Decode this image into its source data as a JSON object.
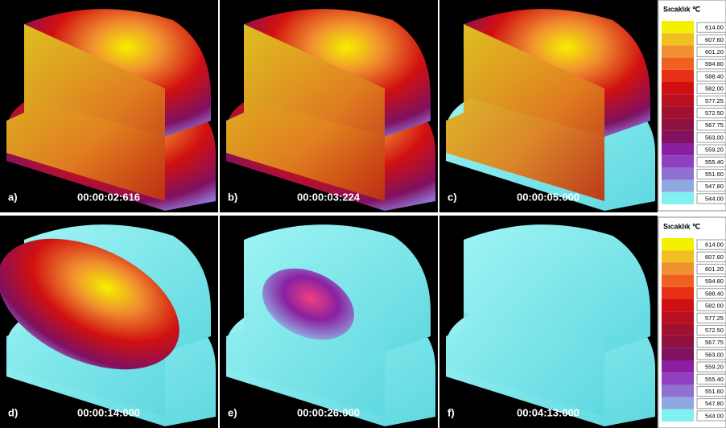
{
  "panels": [
    {
      "label": "a)",
      "time": "00:00:02:616"
    },
    {
      "label": "b)",
      "time": "00:00:03:224"
    },
    {
      "label": "c)",
      "time": "00:00:05:000"
    },
    {
      "label": "d)",
      "time": "00:00:14:000"
    },
    {
      "label": "e)",
      "time": "00:00:26:000"
    },
    {
      "label": "f)",
      "time": "00:04:13:000"
    }
  ],
  "legends": [
    {
      "title": "Sıcaklık ℃",
      "values": [
        "614.00",
        "607.60",
        "601.20",
        "594.80",
        "588.40",
        "582.00",
        "577.25",
        "572.50",
        "567.75",
        "563.00",
        "559.20",
        "555.40",
        "551.60",
        "547.80",
        "544.00"
      ],
      "colors": [
        "#f5f000",
        "#f0c020",
        "#f09030",
        "#f06020",
        "#e83018",
        "#d01010",
        "#b81020",
        "#a01030",
        "#901040",
        "#801060",
        "#8a20a0",
        "#9040c0",
        "#9070d0",
        "#90a8e0",
        "#80f0f0"
      ]
    },
    {
      "title": "Sıcaklık ℃",
      "values": [
        "614.00",
        "607.60",
        "601.20",
        "594.80",
        "588.40",
        "582.00",
        "577.25",
        "572.50",
        "567.75",
        "563.00",
        "559.20",
        "555.40",
        "551.60",
        "547.80",
        "544.00"
      ],
      "colors": [
        "#f5f000",
        "#f0c020",
        "#f09030",
        "#f06020",
        "#e83018",
        "#d01010",
        "#b81020",
        "#a01030",
        "#901040",
        "#801060",
        "#8a20a0",
        "#9040c0",
        "#9070d0",
        "#90a8e0",
        "#80f0f0"
      ]
    }
  ]
}
